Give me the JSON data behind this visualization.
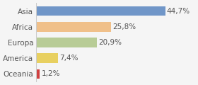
{
  "categories": [
    "Asia",
    "Africa",
    "Europa",
    "America",
    "Oceania"
  ],
  "values": [
    44.7,
    25.8,
    20.9,
    7.4,
    1.2
  ],
  "labels": [
    "44,7%",
    "25,8%",
    "20,9%",
    "7,4%",
    "1,2%"
  ],
  "bar_colors": [
    "#7096c8",
    "#f0c08a",
    "#b8cc96",
    "#e8d060",
    "#d04040"
  ],
  "background_color": "#f5f5f5",
  "xlim": [
    0,
    55
  ],
  "label_fontsize": 7.5,
  "category_fontsize": 7.5
}
